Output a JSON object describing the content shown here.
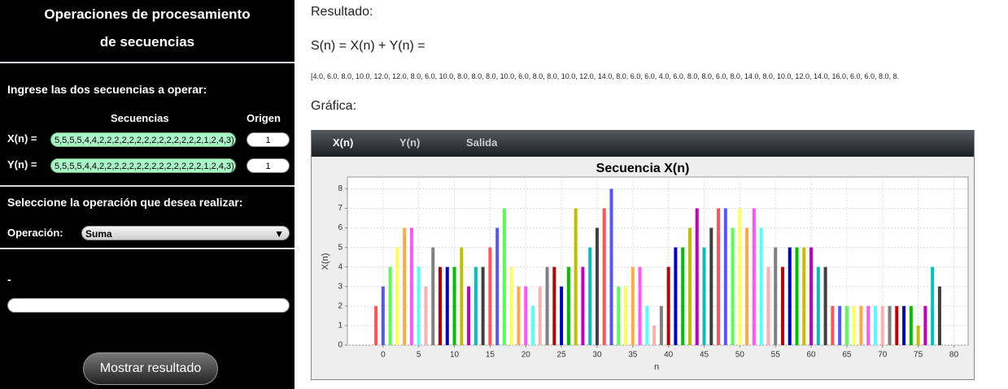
{
  "panel": {
    "title_line1": "Operaciones de procesamiento",
    "title_line2": "de secuencias",
    "prompt": "Ingrese las dos secuencias a operar:",
    "col_seq": "Secuencias",
    "col_origin": "Origen",
    "x_label": "X(n) =",
    "x_value": "5,5,5,5,4,4,2,2,2,2,2,2,2,2,2,2,2,2,2,2,1,2,4,3)",
    "x_origin": "1",
    "y_label": "Y(n) =",
    "y_value": "5,5,5,5,4,4,2,2,2,2,2,2,2,2,2,2,2,2,2,2,1,2,4,3)",
    "y_origin": "1",
    "op_prompt": "Seleccione la operación que desea realizar:",
    "op_label": "Operación:",
    "op_value": "Suma",
    "dash": "-",
    "button": "Mostrar resultado"
  },
  "result": {
    "heading": "Resultado:",
    "formula": "S(n) = X(n) + Y(n) =",
    "values_text": "[4.0, 6.0, 8.0, 10.0, 12.0, 12.0, 8.0, 6.0, 10.0, 8.0, 8.0, 8.0, 10.0, 6.0, 8.0, 8.0, 10.0, 12.0, 14.0, 8.0, 6.0, 6.0, 4.0, 6.0, 8.0, 8.0, 6.0, 8.0, 14.0, 8.0, 10.0, 12.0, 14.0, 16.0, 6.0, 6.0, 8.0, 8.",
    "graph_heading": "Gráfica:"
  },
  "tabs": [
    "X(n)",
    "Y(n)",
    "Salida"
  ],
  "chart_data": {
    "type": "bar",
    "title": "Secuencia X(n)",
    "x_label": "n",
    "y_label": "X(n)",
    "x": [
      -1,
      0,
      1,
      2,
      3,
      4,
      5,
      6,
      7,
      8,
      9,
      10,
      11,
      12,
      13,
      14,
      15,
      16,
      17,
      18,
      19,
      20,
      21,
      22,
      23,
      24,
      25,
      26,
      27,
      28,
      29,
      30,
      31,
      32,
      33,
      34,
      35,
      36,
      37,
      38,
      39,
      40,
      41,
      42,
      43,
      44,
      45,
      46,
      47,
      48,
      49,
      50,
      51,
      52,
      53,
      54,
      55,
      56,
      57,
      58,
      59,
      60,
      61,
      62,
      63,
      64,
      65,
      66,
      67,
      68,
      69,
      70,
      71,
      72,
      73,
      74,
      75,
      76,
      77,
      78
    ],
    "values": [
      2,
      3,
      4,
      5,
      6,
      6,
      4,
      3,
      5,
      4,
      4,
      4,
      5,
      3,
      4,
      4,
      5,
      6,
      7,
      4,
      3,
      3,
      2,
      3,
      4,
      4,
      3,
      4,
      7,
      4,
      5,
      6,
      7,
      8,
      3,
      3,
      4,
      4,
      2,
      1,
      2,
      4,
      5,
      5,
      6,
      7,
      5,
      6,
      7,
      7,
      6,
      7,
      6,
      7,
      6,
      4,
      5,
      4,
      5,
      5,
      5,
      5,
      4,
      4,
      2,
      2,
      2,
      2,
      2,
      2,
      2,
      2,
      2,
      2,
      2,
      2,
      1,
      2,
      4,
      3
    ],
    "colors": [
      "#ff5555",
      "#5555ff",
      "#55ff55",
      "#ffff55",
      "#ffaa44",
      "#ff55ff",
      "#55ffff",
      "#ffafaf",
      "#808080",
      "#c00000",
      "#0000c0",
      "#00c000",
      "#c0c000",
      "#c000c0",
      "#00c0c0",
      "#404040"
    ],
    "xlim": [
      -5,
      82
    ],
    "ylim": [
      0,
      8.6
    ],
    "xticks": [
      0,
      5,
      10,
      15,
      20,
      25,
      30,
      35,
      40,
      45,
      50,
      55,
      60,
      65,
      70,
      75,
      80
    ],
    "yticks": [
      0,
      1,
      2,
      3,
      4,
      5,
      6,
      7,
      8
    ],
    "grid": true
  }
}
